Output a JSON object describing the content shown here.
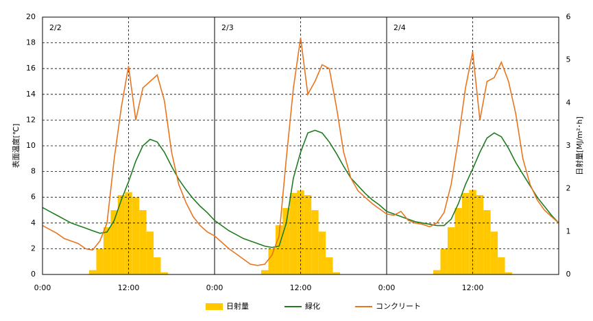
{
  "chart_data": {
    "type": "line",
    "ylabel": "表面温度[℃]",
    "y2label": "日射量[MJ/m²･h]",
    "x": [
      0,
      1,
      2,
      3,
      4,
      5,
      6,
      7,
      8,
      9,
      10,
      11,
      12,
      13,
      14,
      15,
      16,
      17,
      18,
      19,
      20,
      21,
      22,
      23,
      24,
      25,
      26,
      27,
      28,
      29,
      30,
      31,
      32,
      33,
      34,
      35,
      36,
      37,
      38,
      39,
      40,
      41,
      42,
      43,
      44,
      45,
      46,
      47,
      48,
      49,
      50,
      51,
      52,
      53,
      54,
      55,
      56,
      57,
      58,
      59,
      60,
      61,
      62,
      63,
      64,
      65,
      66,
      67,
      68,
      69,
      70,
      71,
      72
    ],
    "xlim": [
      0,
      72
    ],
    "xticks": [
      {
        "value": 0,
        "label": "0:00"
      },
      {
        "value": 12,
        "label": "12:00"
      },
      {
        "value": 24,
        "label": "0:00"
      },
      {
        "value": 36,
        "label": "12:00"
      },
      {
        "value": 48,
        "label": "0:00"
      },
      {
        "value": 60,
        "label": "12:00"
      }
    ],
    "ylim": [
      0,
      20
    ],
    "yticks": [
      0,
      2,
      4,
      6,
      8,
      10,
      12,
      14,
      16,
      18,
      20
    ],
    "y2lim": [
      0,
      6
    ],
    "y2ticks": [
      0,
      1,
      2,
      3,
      4,
      5,
      6
    ],
    "grid": true,
    "annotations": [
      {
        "text": "2/2",
        "x": 0
      },
      {
        "text": "2/3",
        "x": 24
      },
      {
        "text": "2/4",
        "x": 48
      }
    ],
    "series": [
      {
        "name": "日射量",
        "type": "bar",
        "axis": "y2",
        "color": "#ffc800",
        "values": [
          0,
          0,
          0,
          0,
          0,
          0,
          0,
          0.1,
          0.6,
          1.1,
          1.5,
          1.85,
          1.92,
          1.8,
          1.5,
          1.0,
          0.4,
          0.05,
          0,
          0,
          0,
          0,
          0,
          0,
          0,
          0,
          0,
          0,
          0,
          0,
          0,
          0.1,
          0.6,
          1.15,
          1.55,
          1.9,
          1.96,
          1.85,
          1.5,
          1.0,
          0.4,
          0.05,
          0,
          0,
          0,
          0,
          0,
          0,
          0,
          0,
          0,
          0,
          0,
          0,
          0,
          0.1,
          0.6,
          1.1,
          1.55,
          1.9,
          1.97,
          1.85,
          1.5,
          1.0,
          0.4,
          0.05,
          0,
          0,
          0,
          0,
          0,
          0,
          0
        ]
      },
      {
        "name": "緑化",
        "type": "line",
        "color": "#1e7b1e",
        "values": [
          5.2,
          4.9,
          4.6,
          4.3,
          4.0,
          3.8,
          3.6,
          3.4,
          3.2,
          3.3,
          4.2,
          5.8,
          7.2,
          8.8,
          10.0,
          10.5,
          10.3,
          9.5,
          8.4,
          7.4,
          6.6,
          5.9,
          5.3,
          4.8,
          4.2,
          3.8,
          3.4,
          3.1,
          2.8,
          2.6,
          2.4,
          2.2,
          2.1,
          2.2,
          4.0,
          7.5,
          9.5,
          11.0,
          11.2,
          11.0,
          10.3,
          9.4,
          8.4,
          7.5,
          6.9,
          6.3,
          5.8,
          5.4,
          4.9,
          4.7,
          4.5,
          4.3,
          4.1,
          4.0,
          3.9,
          3.8,
          3.8,
          4.3,
          5.5,
          7.0,
          8.2,
          9.5,
          10.6,
          11.0,
          10.7,
          9.8,
          8.7,
          7.8,
          6.9,
          6.0,
          5.3,
          4.6,
          4.0
        ]
      },
      {
        "name": "コンクリート",
        "type": "line",
        "color": "#e8741e",
        "values": [
          3.8,
          3.5,
          3.2,
          2.8,
          2.6,
          2.4,
          2.0,
          1.9,
          2.6,
          4.0,
          9.0,
          13.0,
          16.2,
          12.0,
          14.5,
          15.0,
          15.5,
          13.5,
          9.5,
          7.0,
          5.6,
          4.5,
          3.8,
          3.3,
          3.0,
          2.5,
          2.0,
          1.6,
          1.2,
          0.8,
          0.7,
          0.8,
          1.5,
          3.0,
          9.0,
          14.5,
          18.4,
          14.0,
          15.0,
          16.3,
          16.0,
          13.0,
          9.5,
          7.5,
          6.5,
          6.0,
          5.5,
          5.1,
          4.7,
          4.6,
          4.9,
          4.2,
          4.0,
          3.9,
          3.7,
          4.0,
          4.8,
          7.0,
          10.5,
          14.5,
          17.3,
          12.0,
          15.0,
          15.3,
          16.5,
          15.0,
          12.5,
          9.0,
          7.0,
          5.8,
          5.0,
          4.5,
          4.0
        ]
      }
    ]
  }
}
